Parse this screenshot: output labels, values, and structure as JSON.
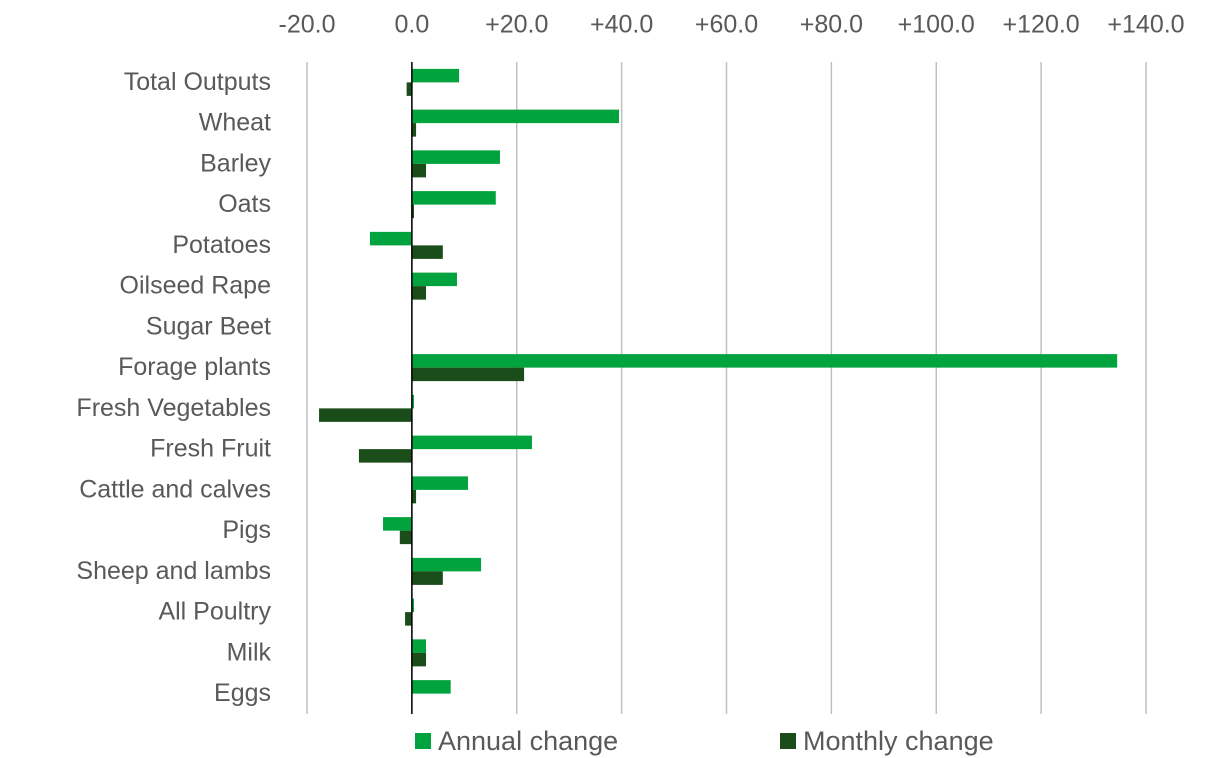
{
  "chart_data": {
    "type": "bar",
    "orientation": "horizontal",
    "categories": [
      "Total Outputs",
      "Wheat",
      "Barley",
      "Oats",
      "Potatoes",
      "Oilseed Rape",
      "Sugar Beet",
      "Forage plants",
      "Fresh Vegetables",
      "Fresh Fruit",
      "Cattle and calves",
      "Pigs",
      "Sheep and lambs",
      "All Poultry",
      "Milk",
      "Eggs"
    ],
    "series": [
      {
        "name": "Annual change",
        "color": "#00a33d",
        "values": [
          9.0,
          39.5,
          16.8,
          16.0,
          -8.0,
          8.6,
          0,
          134.5,
          0.4,
          22.9,
          10.7,
          -5.5,
          13.2,
          0.4,
          2.7,
          7.4
        ]
      },
      {
        "name": "Monthly change",
        "color": "#1a4d1a",
        "values": [
          -1.0,
          0.8,
          2.7,
          0.4,
          5.9,
          2.7,
          0,
          21.4,
          -17.7,
          -10.1,
          0.8,
          -2.3,
          5.9,
          -1.3,
          2.7,
          0
        ]
      }
    ],
    "xlim": [
      -20,
      140
    ],
    "xticks": [
      {
        "value": -20,
        "label": "-20.0"
      },
      {
        "value": 0,
        "label": "0.0"
      },
      {
        "value": 20,
        "label": "+20.0"
      },
      {
        "value": 40,
        "label": "+40.0"
      },
      {
        "value": 60,
        "label": "+60.0"
      },
      {
        "value": 80,
        "label": "+80.0"
      },
      {
        "value": 100,
        "label": "+100.0"
      },
      {
        "value": 120,
        "label": "+120.0"
      },
      {
        "value": 140,
        "label": "+140.0"
      }
    ],
    "grid": true,
    "legend": "bottom"
  }
}
